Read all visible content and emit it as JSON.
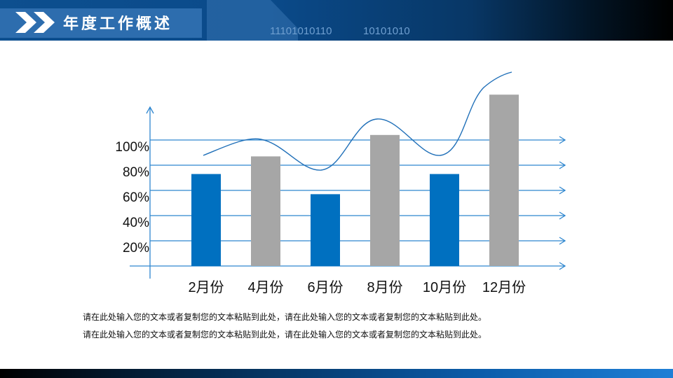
{
  "header": {
    "title": "年度工作概述",
    "binary_1": "11101010110",
    "binary_2": "10101010"
  },
  "chart_data": {
    "type": "bar",
    "categories": [
      "2月份",
      "4月份",
      "6月份",
      "8月份",
      "10月份",
      "12月份"
    ],
    "values": [
      73,
      87,
      57,
      104,
      73,
      136
    ],
    "y_ticks": [
      "20%",
      "40%",
      "60%",
      "80%",
      "100%"
    ],
    "y_tick_values": [
      20,
      40,
      60,
      80,
      100
    ],
    "ylim": [
      0,
      140
    ],
    "colors": [
      "#0070c0",
      "#a6a6a6",
      "#0070c0",
      "#a6a6a6",
      "#0070c0",
      "#a6a6a6"
    ],
    "axis_color": "#2e86cf",
    "trend_line": true
  },
  "description": [
    "请在此处输入您的文本或者复制您的文本粘贴到此处，请在此处输入您的文本或者复制您的文本粘贴到此处。",
    "请在此处输入您的文本或者复制您的文本粘贴到此处，请在此处输入您的文本或者复制您的文本粘贴到此处。"
  ]
}
